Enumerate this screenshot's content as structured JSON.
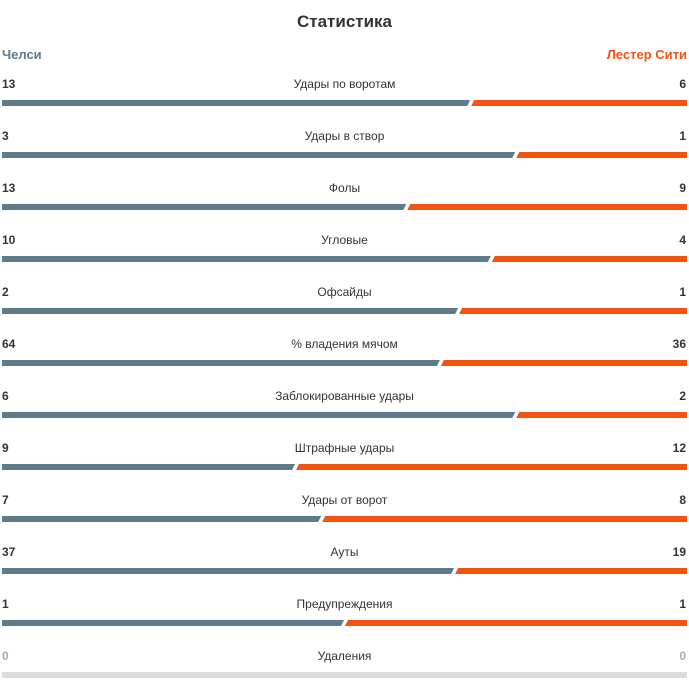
{
  "title": "Статистика",
  "colors": {
    "home": "#5f7a89",
    "away": "#f4520f",
    "empty": "#dddddd"
  },
  "teams": {
    "home": "Челси",
    "away": "Лестер Сити"
  },
  "stats": [
    {
      "label": "Удары по воротам",
      "home": "13",
      "away": "6"
    },
    {
      "label": "Удары в створ",
      "home": "3",
      "away": "1"
    },
    {
      "label": "Фолы",
      "home": "13",
      "away": "9"
    },
    {
      "label": "Угловые",
      "home": "10",
      "away": "4"
    },
    {
      "label": "Офсайды",
      "home": "2",
      "away": "1"
    },
    {
      "label": "% владения мячом",
      "home": "64",
      "away": "36"
    },
    {
      "label": "Заблокированные удары",
      "home": "6",
      "away": "2"
    },
    {
      "label": "Штрафные удары",
      "home": "9",
      "away": "12"
    },
    {
      "label": "Удары от ворот",
      "home": "7",
      "away": "8"
    },
    {
      "label": "Ауты",
      "home": "37",
      "away": "19"
    },
    {
      "label": "Предупреждения",
      "home": "1",
      "away": "1"
    },
    {
      "label": "Удаления",
      "home": "0",
      "away": "0"
    }
  ]
}
